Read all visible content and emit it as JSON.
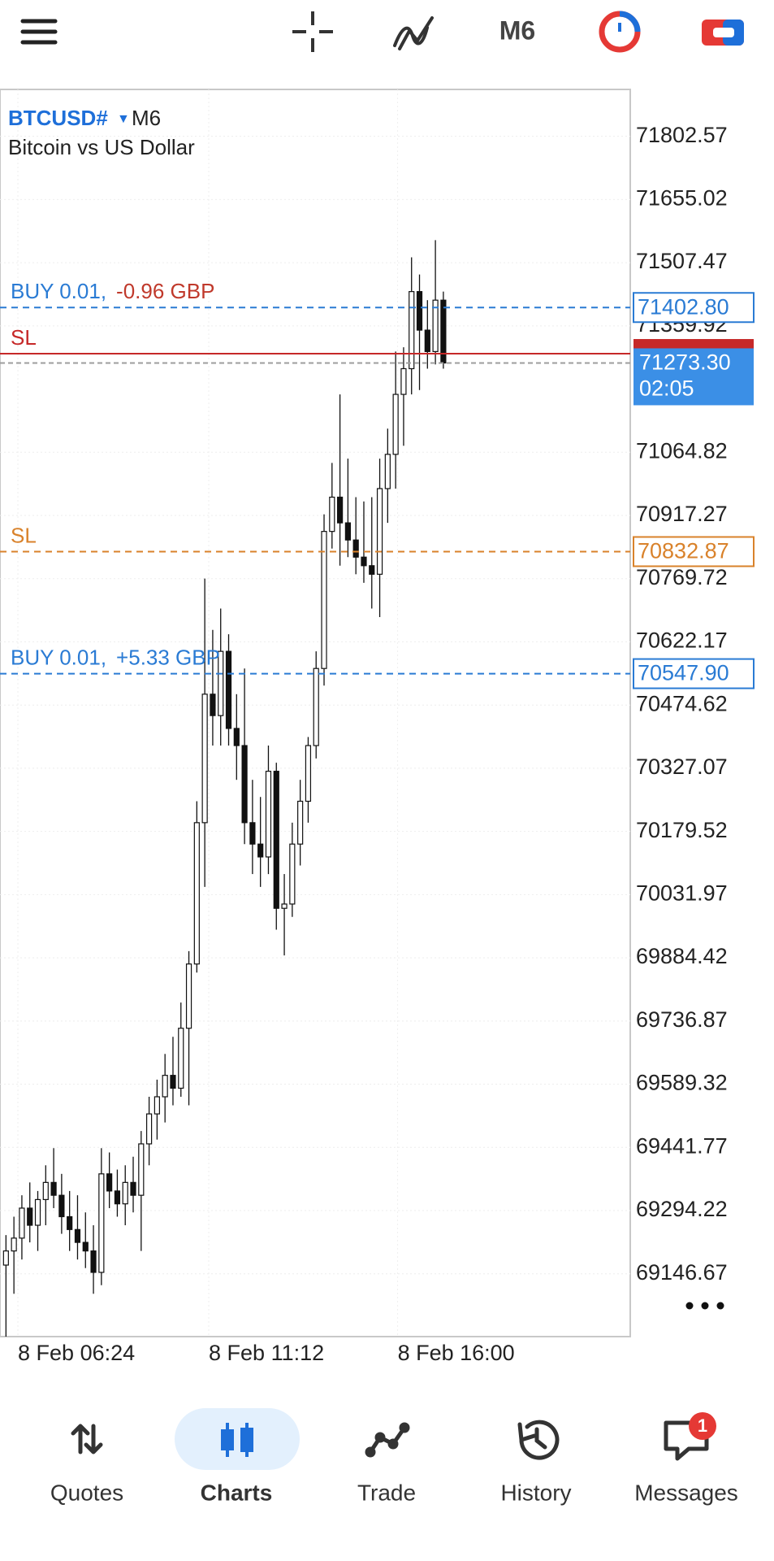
{
  "toolbar": {
    "timeframe": "M6"
  },
  "chart_data": {
    "type": "candlestick",
    "symbol": "BTCUSD#",
    "timeframe": "M6",
    "description": "Bitcoin vs US Dollar",
    "ylim": [
      69000,
      71912
    ],
    "yticks": [
      71802.57,
      71655.02,
      71507.47,
      71359.92,
      71064.82,
      70917.27,
      70769.72,
      70622.17,
      70474.62,
      70327.07,
      70179.52,
      70031.97,
      69884.42,
      69736.87,
      69589.32,
      69441.77,
      69294.22,
      69146.67
    ],
    "xlim": [
      -0.75,
      78.5
    ],
    "xticks": [
      {
        "value": 1.5,
        "label": "8 Feb 06:24"
      },
      {
        "value": 25.5,
        "label": "8 Feb 11:12"
      },
      {
        "value": 49.25,
        "label": "8 Feb 16:00"
      }
    ],
    "grid": true,
    "candles": [
      [
        69167,
        69237,
        69000,
        69200
      ],
      [
        69200,
        69280,
        69100,
        69230
      ],
      [
        69230,
        69330,
        69180,
        69300
      ],
      [
        69300,
        69360,
        69220,
        69260
      ],
      [
        69260,
        69340,
        69200,
        69320
      ],
      [
        69320,
        69400,
        69260,
        69360
      ],
      [
        69360,
        69440,
        69300,
        69330
      ],
      [
        69330,
        69380,
        69240,
        69280
      ],
      [
        69280,
        69340,
        69200,
        69250
      ],
      [
        69250,
        69330,
        69180,
        69220
      ],
      [
        69220,
        69290,
        69160,
        69200
      ],
      [
        69200,
        69260,
        69100,
        69150
      ],
      [
        69150,
        69440,
        69120,
        69380
      ],
      [
        69380,
        69430,
        69300,
        69340
      ],
      [
        69340,
        69390,
        69280,
        69310
      ],
      [
        69310,
        69400,
        69260,
        69360
      ],
      [
        69360,
        69420,
        69290,
        69330
      ],
      [
        69330,
        69480,
        69200,
        69450
      ],
      [
        69450,
        69560,
        69400,
        69520
      ],
      [
        69520,
        69600,
        69460,
        69560
      ],
      [
        69560,
        69660,
        69500,
        69610
      ],
      [
        69610,
        69700,
        69540,
        69580
      ],
      [
        69580,
        69780,
        69560,
        69720
      ],
      [
        69720,
        69900,
        69540,
        69870
      ],
      [
        69870,
        70250,
        69850,
        70200
      ],
      [
        70200,
        70770,
        70050,
        70500
      ],
      [
        70500,
        70650,
        70380,
        70450
      ],
      [
        70450,
        70700,
        70380,
        70600
      ],
      [
        70600,
        70640,
        70380,
        70420
      ],
      [
        70420,
        70500,
        70300,
        70380
      ],
      [
        70380,
        70560,
        70150,
        70200
      ],
      [
        70200,
        70300,
        70080,
        70150
      ],
      [
        70150,
        70260,
        70050,
        70120
      ],
      [
        70120,
        70380,
        70080,
        70320
      ],
      [
        70320,
        70340,
        69950,
        70000
      ],
      [
        70000,
        70080,
        69890,
        70010
      ],
      [
        70010,
        70200,
        69980,
        70150
      ],
      [
        70150,
        70300,
        70100,
        70250
      ],
      [
        70250,
        70400,
        70200,
        70380
      ],
      [
        70380,
        70600,
        70350,
        70560
      ],
      [
        70560,
        70920,
        70520,
        70880
      ],
      [
        70880,
        71040,
        70840,
        70960
      ],
      [
        70960,
        71200,
        70800,
        70900
      ],
      [
        70900,
        71050,
        70820,
        70860
      ],
      [
        70860,
        70960,
        70780,
        70820
      ],
      [
        70820,
        70950,
        70760,
        70800
      ],
      [
        70800,
        70960,
        70700,
        70780
      ],
      [
        70780,
        71050,
        70680,
        70980
      ],
      [
        70980,
        71120,
        70900,
        71060
      ],
      [
        71060,
        71300,
        70980,
        71200
      ],
      [
        71200,
        71310,
        71080,
        71260
      ],
      [
        71260,
        71520,
        71200,
        71440
      ],
      [
        71440,
        71480,
        71210,
        71350
      ],
      [
        71350,
        71420,
        71260,
        71300
      ],
      [
        71300,
        71560,
        71270,
        71420
      ],
      [
        71420,
        71440,
        71260,
        71273.3
      ]
    ],
    "levels": [
      {
        "label": "BUY 0.01,",
        "profit": "-0.96 GBP",
        "value": 71402.8,
        "value_label": "71402.80",
        "color": "#2a7bd4",
        "profit_color": "#c0392b",
        "dashed": true
      },
      {
        "label": "SL",
        "value": 71295,
        "color": "#c62828",
        "dashed": false
      },
      {
        "label": "SL",
        "value": 70832.87,
        "value_label": "70832.87",
        "color": "#d9822b",
        "dashed": true
      },
      {
        "label": "BUY 0.01,",
        "profit": "+5.33 GBP",
        "value": 70547.9,
        "value_label": "70547.90",
        "color": "#2a7bd4",
        "profit_color": "#2a7bd4",
        "dashed": true
      }
    ],
    "bid": {
      "value": 71273.3,
      "label": "71273.30",
      "countdown": "02:05",
      "color": "#3b8fe6"
    }
  },
  "nav": {
    "items": [
      {
        "label": "Quotes"
      },
      {
        "label": "Charts",
        "active": true
      },
      {
        "label": "Trade"
      },
      {
        "label": "History"
      },
      {
        "label": "Messages",
        "badge": "1"
      }
    ]
  }
}
